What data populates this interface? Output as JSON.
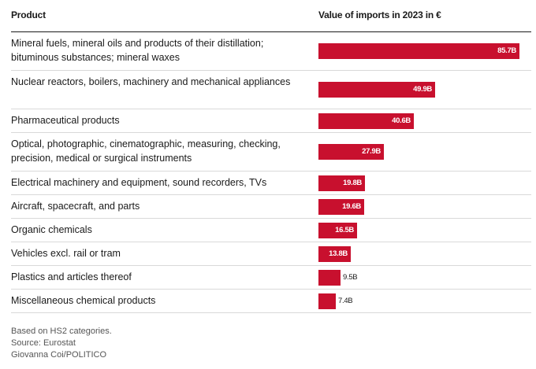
{
  "chart_data": {
    "type": "bar",
    "orientation": "horizontal",
    "columns": {
      "product": "Product",
      "value": "Value of imports in 2023 in €"
    },
    "categories": [
      "Mineral fuels, mineral oils and products of their distillation; bituminous substances; mineral waxes",
      "Nuclear reactors, boilers, machinery and mechanical appliances",
      "Pharmaceutical products",
      "Optical, photographic, cinematographic, measuring, checking, precision, medical or surgical instruments",
      "Electrical machinery and equipment, sound recorders, TVs",
      "Aircraft, spacecraft, and parts",
      "Organic chemicals",
      "Vehicles excl. rail or tram",
      "Plastics and articles thereof",
      "Miscellaneous chemical products"
    ],
    "values": [
      85.7,
      49.9,
      40.6,
      27.9,
      19.8,
      19.6,
      16.5,
      13.8,
      9.5,
      7.4
    ],
    "value_labels": [
      "85.7B",
      "49.9B",
      "40.6B",
      "27.9B",
      "19.8B",
      "19.6B",
      "16.5B",
      "13.8B",
      "9.5B",
      "7.4B"
    ],
    "xlim": [
      0,
      85.7
    ],
    "bar_color": "#c8102e"
  },
  "notes": [
    "Based on HS2 categories.",
    "Source: Eurostat",
    "Giovanna Coi/POLITICO"
  ]
}
